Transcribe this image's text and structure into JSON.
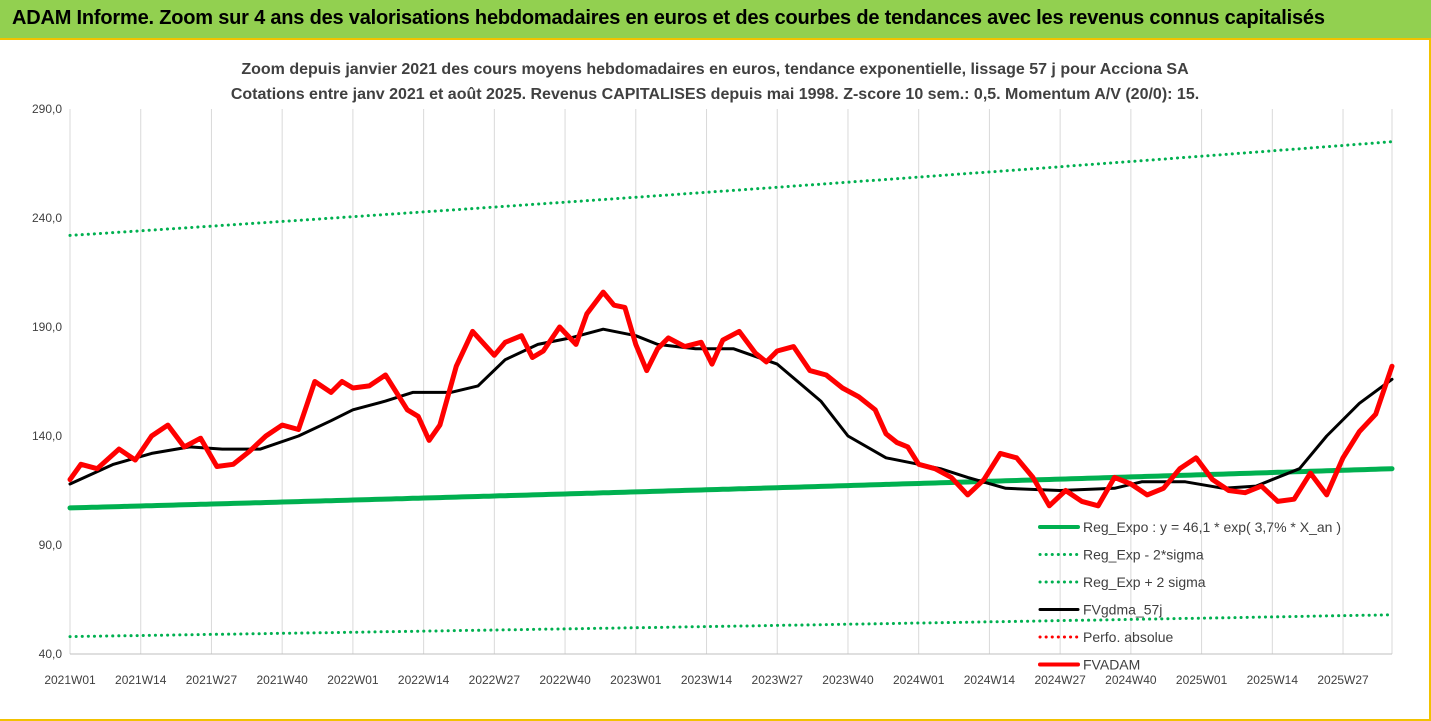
{
  "header": {
    "banner_title": "ADAM Informe. Zoom sur 4 ans des valorisations hebdomadaires en euros et des courbes de tendances avec les revenus connus capitalisés"
  },
  "chart_data": {
    "type": "line",
    "title": "Zoom depuis janvier 2021 des cours moyens hebdomadaires en euros, tendance exponentielle, lissage 57 j pour Acciona SA",
    "subtitle": "Cotations entre janv 2021 et août 2025. Revenus CAPITALISES depuis mai 1998. Z-score 10 sem.: 0,5. Momentum A/V (20/0): 15.",
    "xlabel": "",
    "ylabel": "",
    "ylim": [
      40,
      290
    ],
    "y_ticks": [
      "290,0",
      "240,0",
      "190,0",
      "140,0",
      "90,0",
      "40,0"
    ],
    "y_tick_values": [
      290,
      240,
      190,
      140,
      90,
      40
    ],
    "x_ticks": [
      "2021W01",
      "2021W14",
      "2021W27",
      "2021W40",
      "2022W01",
      "2022W14",
      "2022W27",
      "2022W40",
      "2023W01",
      "2023W14",
      "2023W27",
      "2023W40",
      "2024W01",
      "2024W14",
      "2024W27",
      "2024W40",
      "2025W01",
      "2025W14",
      "2025W27"
    ],
    "x_range_weeks": [
      0,
      243
    ],
    "grid": "vertical",
    "legend_position": "right-bottom",
    "series": [
      {
        "name": "Reg_Expo : y = 46,1 * exp( 3,7% * X_an )",
        "style": "solid",
        "color": "#00b050",
        "width": 5,
        "x": [
          0,
          243
        ],
        "values": [
          107,
          125
        ]
      },
      {
        "name": "Reg_Exp - 2*sigma",
        "style": "dotted",
        "color": "#00b050",
        "width": 3,
        "x": [
          0,
          243
        ],
        "values": [
          48,
          58
        ]
      },
      {
        "name": "Reg_Exp + 2 sigma",
        "style": "dotted",
        "color": "#00b050",
        "width": 3,
        "x": [
          0,
          243
        ],
        "values": [
          232,
          275
        ]
      },
      {
        "name": "FVgdma_57j",
        "style": "solid",
        "color": "#000000",
        "width": 3,
        "x": [
          0,
          8,
          15,
          22,
          28,
          35,
          42,
          48,
          52,
          58,
          63,
          70,
          75,
          80,
          86,
          92,
          98,
          104,
          108,
          115,
          122,
          130,
          138,
          143,
          150,
          156,
          160,
          165,
          172,
          182,
          192,
          197,
          205,
          212,
          218,
          226,
          231,
          237,
          243
        ],
        "values": [
          118,
          127,
          132,
          135,
          134,
          134,
          140,
          147,
          152,
          156,
          160,
          160,
          163,
          175,
          182,
          185,
          189,
          186,
          182,
          180,
          180,
          173,
          156,
          140,
          130,
          127,
          125,
          121,
          116,
          115,
          116,
          119,
          119,
          116,
          117,
          125,
          140,
          155,
          166
        ]
      },
      {
        "name": "Perfo. absolue",
        "style": "dotted",
        "color": "#ff0000",
        "width": 3,
        "x": [],
        "values": []
      },
      {
        "name": "FVADAM",
        "style": "solid",
        "color": "#ff0000",
        "width": 5,
        "x": [
          0,
          2,
          5,
          9,
          12,
          15,
          18,
          21,
          24,
          27,
          30,
          33,
          36,
          39,
          42,
          45,
          48,
          50,
          52,
          55,
          58,
          62,
          64,
          66,
          68,
          71,
          74,
          78,
          80,
          83,
          85,
          87,
          90,
          93,
          95,
          98,
          100,
          102,
          104,
          106,
          108,
          110,
          113,
          116,
          118,
          120,
          123,
          126,
          128,
          130,
          133,
          136,
          139,
          142,
          145,
          148,
          150,
          152,
          154,
          156,
          159,
          162,
          165,
          168,
          171,
          174,
          177,
          180,
          183,
          186,
          189,
          192,
          195,
          198,
          201,
          204,
          207,
          210,
          213,
          216,
          219,
          222,
          225,
          228,
          231,
          234,
          237,
          240,
          243
        ],
        "values": [
          120,
          127,
          125,
          134,
          129,
          140,
          145,
          135,
          139,
          126,
          127,
          133,
          140,
          145,
          143,
          165,
          160,
          165,
          162,
          163,
          168,
          152,
          149,
          138,
          145,
          172,
          188,
          177,
          183,
          186,
          176,
          179,
          190,
          182,
          196,
          206,
          200,
          199,
          182,
          170,
          180,
          185,
          181,
          183,
          173,
          184,
          188,
          178,
          174,
          179,
          181,
          170,
          168,
          162,
          158,
          152,
          141,
          137,
          135,
          127,
          125,
          121,
          113,
          120,
          132,
          130,
          121,
          108,
          115,
          110,
          108,
          121,
          118,
          113,
          116,
          125,
          130,
          120,
          115,
          114,
          117,
          110,
          111,
          123,
          113,
          130,
          142,
          150,
          172
        ]
      }
    ]
  }
}
